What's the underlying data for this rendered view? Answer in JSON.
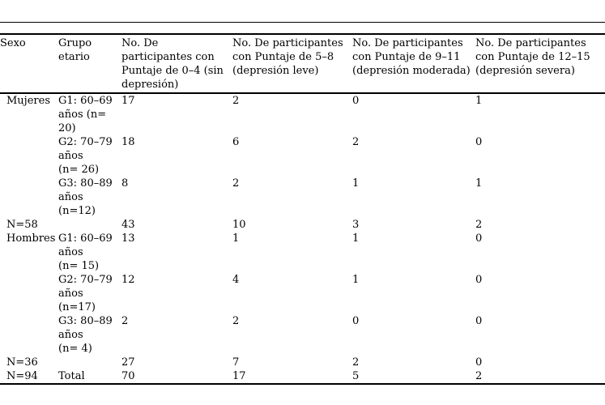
{
  "table": {
    "columns": [
      {
        "label": "Sexo"
      },
      {
        "label": "Grupo\netario"
      },
      {
        "label": "No. De\nparticipantes con\nPuntaje de 0–4 (sin\ndepresión)"
      },
      {
        "label": "No. De participantes\ncon Puntaje de 5–8\n(depresión leve)"
      },
      {
        "label": "No. De participantes\ncon Puntaje de 9–11\n(depresión moderada)"
      },
      {
        "label": "No. De participantes\ncon Puntaje de 12–15\n(depresión severa)"
      }
    ],
    "rows": [
      {
        "cells": [
          "Mujeres",
          "G1: 60–69\naños (n=\n20)",
          "17",
          "2",
          "0",
          "1"
        ]
      },
      {
        "cells": [
          "",
          "G2: 70–79\naños\n(n= 26)",
          "18",
          "6",
          "2",
          "0"
        ]
      },
      {
        "cells": [
          "",
          "G3: 80–89\naños\n(n=12)",
          "8",
          "2",
          "1",
          "1"
        ]
      },
      {
        "cells": [
          "N=58",
          "",
          "43",
          "10",
          "3",
          "2"
        ]
      },
      {
        "cells": [
          "Hombres",
          "G1: 60–69\naños\n(n= 15)",
          "13",
          "1",
          "1",
          "0"
        ]
      },
      {
        "cells": [
          "",
          "G2: 70–79\naños\n(n=17)",
          "12",
          "4",
          "1",
          "0"
        ]
      },
      {
        "cells": [
          "",
          "G3: 80–89\naños\n(n= 4)",
          "2",
          "2",
          "0",
          "0"
        ]
      },
      {
        "cells": [
          "N=36",
          "",
          "27",
          "7",
          "2",
          "0"
        ]
      },
      {
        "cells": [
          "N=94",
          "Total",
          "70",
          "17",
          "5",
          "2"
        ]
      }
    ]
  }
}
